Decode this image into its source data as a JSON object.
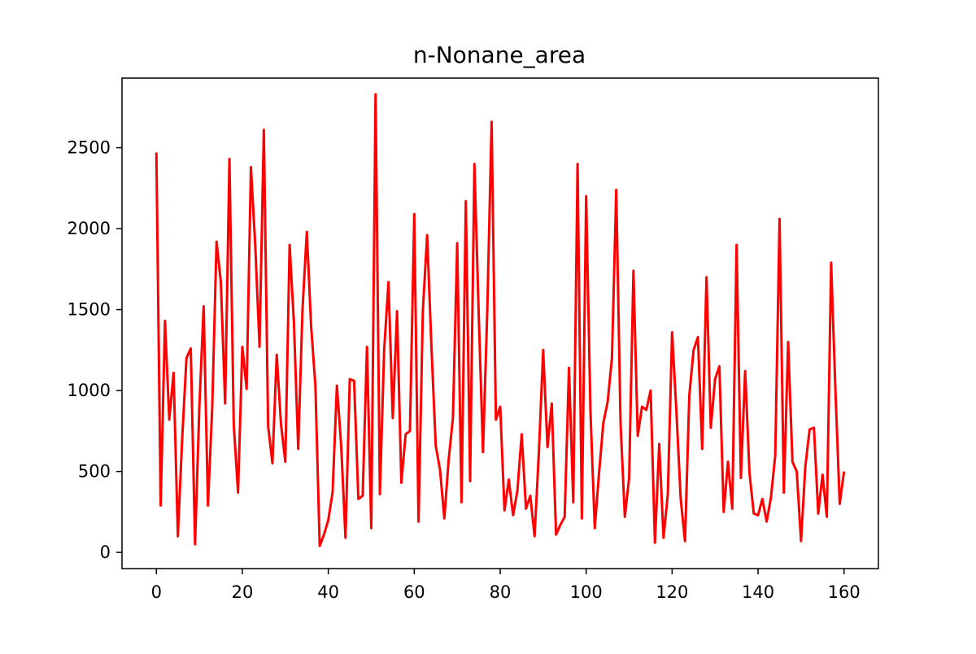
{
  "chart_data": {
    "type": "line",
    "title": "n-Nonane_area",
    "xlabel": "",
    "ylabel": "",
    "xlim": [
      -8,
      168
    ],
    "ylim": [
      -100,
      2930
    ],
    "x_ticks": [
      0,
      20,
      40,
      60,
      80,
      100,
      120,
      140,
      160
    ],
    "y_ticks": [
      0,
      500,
      1000,
      1500,
      2000,
      2500
    ],
    "grid": false,
    "legend": "none",
    "series": [
      {
        "color": "#ff0000",
        "x": [
          0,
          1,
          2,
          3,
          4,
          5,
          6,
          7,
          8,
          9,
          10,
          11,
          12,
          13,
          14,
          15,
          16,
          17,
          18,
          19,
          20,
          21,
          22,
          23,
          24,
          25,
          26,
          27,
          28,
          29,
          30,
          31,
          32,
          33,
          34,
          35,
          36,
          37,
          38,
          39,
          40,
          41,
          42,
          43,
          44,
          45,
          46,
          47,
          48,
          49,
          50,
          51,
          52,
          53,
          54,
          55,
          56,
          57,
          58,
          59,
          60,
          61,
          62,
          63,
          64,
          65,
          66,
          67,
          68,
          69,
          70,
          71,
          72,
          73,
          74,
          75,
          76,
          77,
          78,
          79,
          80,
          81,
          82,
          83,
          84,
          85,
          86,
          87,
          88,
          89,
          90,
          91,
          92,
          93,
          94,
          95,
          96,
          97,
          98,
          99,
          100,
          101,
          102,
          103,
          104,
          105,
          106,
          107,
          108,
          109,
          110,
          111,
          112,
          113,
          114,
          115,
          116,
          117,
          118,
          119,
          120,
          121,
          122,
          123,
          124,
          125,
          126,
          127,
          128,
          129,
          130,
          131,
          132,
          133,
          134,
          135,
          136,
          137,
          138,
          139,
          140,
          141,
          142,
          143,
          144,
          145,
          146,
          147,
          148,
          149,
          150,
          151,
          152,
          153,
          154,
          155,
          156,
          157,
          158,
          159,
          160
        ],
        "values": [
          2470,
          290,
          1430,
          820,
          1110,
          100,
          700,
          1200,
          1260,
          50,
          900,
          1520,
          290,
          900,
          1920,
          1670,
          920,
          2430,
          790,
          370,
          1270,
          1010,
          2380,
          1900,
          1270,
          2610,
          780,
          550,
          1220,
          790,
          560,
          1900,
          1420,
          640,
          1500,
          1980,
          1400,
          1030,
          40,
          110,
          200,
          370,
          1030,
          660,
          90,
          1070,
          1060,
          330,
          350,
          1270,
          150,
          2830,
          360,
          1250,
          1670,
          830,
          1490,
          430,
          730,
          750,
          2090,
          190,
          1490,
          1960,
          1270,
          660,
          510,
          210,
          570,
          830,
          1910,
          310,
          2170,
          440,
          2400,
          1470,
          620,
          1500,
          2660,
          820,
          900,
          260,
          450,
          230,
          380,
          730,
          270,
          350,
          100,
          620,
          1250,
          650,
          920,
          110,
          170,
          220,
          1140,
          310,
          2400,
          210,
          2200,
          870,
          150,
          490,
          800,
          930,
          1200,
          2240,
          800,
          220,
          460,
          1740,
          720,
          900,
          880,
          1000,
          60,
          670,
          90,
          360,
          1360,
          870,
          330,
          70,
          970,
          1250,
          1330,
          640,
          1700,
          770,
          1070,
          1150,
          250,
          560,
          270,
          1900,
          460,
          1120,
          490,
          240,
          230,
          330,
          190,
          340,
          600,
          2060,
          370,
          1300,
          560,
          500,
          70,
          530,
          760,
          770,
          240,
          480,
          220,
          1790,
          1000,
          300,
          500
        ]
      }
    ]
  }
}
